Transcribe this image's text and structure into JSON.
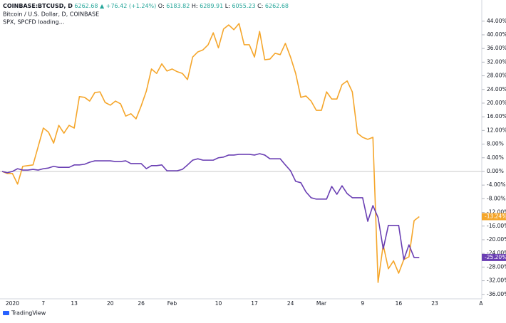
{
  "header": {
    "symbol": "COINBASE:BTCUSD, D",
    "price": "6262.68",
    "change": "▲ +76.42 (+1.24%)",
    "ohlc": [
      {
        "label": "O:",
        "value": "6183.82"
      },
      {
        "label": "H:",
        "value": "6289.91"
      },
      {
        "label": "L:",
        "value": "6055.23"
      },
      {
        "label": "C:",
        "value": "6262.68"
      }
    ],
    "subtitle": "SPX, SPCFD loading..."
  },
  "footer": {
    "logo": "TradingView"
  },
  "chart_data": {
    "type": "line",
    "title": "Bitcoin / U.S. Dollar, D, COINBASE",
    "categories": [
      null,
      null,
      "2020",
      null,
      null,
      null,
      null,
      null,
      "7",
      null,
      null,
      null,
      null,
      null,
      "13",
      null,
      null,
      null,
      null,
      null,
      null,
      "20",
      null,
      null,
      null,
      null,
      null,
      "26",
      null,
      null,
      null,
      null,
      null,
      "Feb",
      null,
      null,
      null,
      null,
      null,
      null,
      null,
      null,
      "10",
      null,
      null,
      null,
      null,
      null,
      null,
      "17",
      null,
      null,
      null,
      null,
      null,
      null,
      "24",
      null,
      null,
      null,
      null,
      null,
      "Mar",
      null,
      null,
      null,
      null,
      null,
      null,
      null,
      "9",
      null,
      null,
      null,
      null,
      null,
      null,
      "16",
      null,
      null,
      null,
      null,
      null,
      null,
      "23",
      null,
      null,
      null,
      null,
      null,
      null,
      null,
      null,
      "A"
    ],
    "series": [
      {
        "name": "BTCUSD",
        "color": "#f5a62b",
        "last_value_label": "-13.24%",
        "values": [
          0,
          -0.6,
          -0.6,
          -3.7,
          1.5,
          1.7,
          1.9,
          7.3,
          12.7,
          11.5,
          8.3,
          13.5,
          11.2,
          13.5,
          12.7,
          21.9,
          21.7,
          20.6,
          23.1,
          23.3,
          20.2,
          19.4,
          20.6,
          19.8,
          16.2,
          16.9,
          15.4,
          19.2,
          23.5,
          30.0,
          28.7,
          31.5,
          29.4,
          30.0,
          29.2,
          28.7,
          26.9,
          33.5,
          35.0,
          35.6,
          37.1,
          40.6,
          36.2,
          41.7,
          42.9,
          41.5,
          43.3,
          37.1,
          37.1,
          33.5,
          41.0,
          32.7,
          32.9,
          34.6,
          34.2,
          37.5,
          33.5,
          28.7,
          21.7,
          22.1,
          20.6,
          17.9,
          17.9,
          23.3,
          21.2,
          21.2,
          25.4,
          26.5,
          23.3,
          11.2,
          10.0,
          9.4,
          10.0,
          -32.5,
          -21.5,
          -28.5,
          -26.2,
          -29.8,
          -25.8,
          -25.0,
          -14.4,
          -13.24,
          null,
          null,
          null,
          null,
          null,
          null,
          null,
          null,
          null,
          null,
          null,
          null
        ]
      },
      {
        "name": "SPX",
        "color": "#6a3fb3",
        "last_value_label": "-25.20%",
        "values": [
          0,
          -0.4,
          0,
          0.8,
          0.4,
          0.4,
          0.6,
          0.4,
          0.8,
          1.0,
          1.5,
          1.2,
          1.2,
          1.2,
          1.9,
          1.9,
          2.1,
          2.7,
          3.1,
          3.1,
          3.1,
          3.1,
          2.9,
          2.9,
          3.1,
          2.3,
          2.3,
          2.3,
          0.8,
          1.7,
          1.7,
          1.9,
          0.2,
          0.2,
          0.2,
          0.6,
          1.9,
          3.3,
          3.7,
          3.3,
          3.3,
          3.3,
          4.0,
          4.2,
          4.8,
          4.8,
          5.0,
          5.0,
          5.0,
          4.8,
          5.2,
          4.8,
          3.7,
          3.7,
          3.7,
          1.9,
          0.2,
          -2.9,
          -3.3,
          -6.0,
          -7.7,
          -8.1,
          -8.1,
          -8.1,
          -4.4,
          -6.7,
          -4.2,
          -6.5,
          -7.7,
          -7.7,
          -7.7,
          -14.6,
          -10.0,
          -13.5,
          -22.7,
          -15.8,
          -15.8,
          -15.8,
          -25.8,
          -21.5,
          -25.2,
          -25.2,
          null,
          null,
          null,
          null,
          null,
          null,
          null,
          null,
          null,
          null,
          null,
          null
        ]
      }
    ],
    "ylim": [
      -37.3,
      50.2
    ],
    "yticks": [
      {
        "value": 44,
        "label": "44.00%"
      },
      {
        "value": 40,
        "label": "40.00%"
      },
      {
        "value": 36,
        "label": "36.00%"
      },
      {
        "value": 32,
        "label": "32.00%"
      },
      {
        "value": 28,
        "label": "28.00%"
      },
      {
        "value": 24,
        "label": "24.00%"
      },
      {
        "value": 20,
        "label": "20.00%"
      },
      {
        "value": 16,
        "label": "16.00%"
      },
      {
        "value": 12,
        "label": "12.00%"
      },
      {
        "value": 8,
        "label": "8.00%"
      },
      {
        "value": 4,
        "label": "4.00%"
      },
      {
        "value": 0,
        "label": "0.00%"
      },
      {
        "value": -4,
        "label": "-4.00%"
      },
      {
        "value": -8,
        "label": "-8.00%"
      },
      {
        "value": -12,
        "label": "-12.00%"
      },
      {
        "value": -16,
        "label": "-16.00%"
      },
      {
        "value": -20,
        "label": "-20.00%"
      },
      {
        "value": -24,
        "label": "-24.00%"
      },
      {
        "value": -28,
        "label": "-28.00%"
      },
      {
        "value": -32,
        "label": "-32.00%"
      },
      {
        "value": -36,
        "label": "-36.00%"
      }
    ],
    "zero_line": true,
    "grid": false
  }
}
